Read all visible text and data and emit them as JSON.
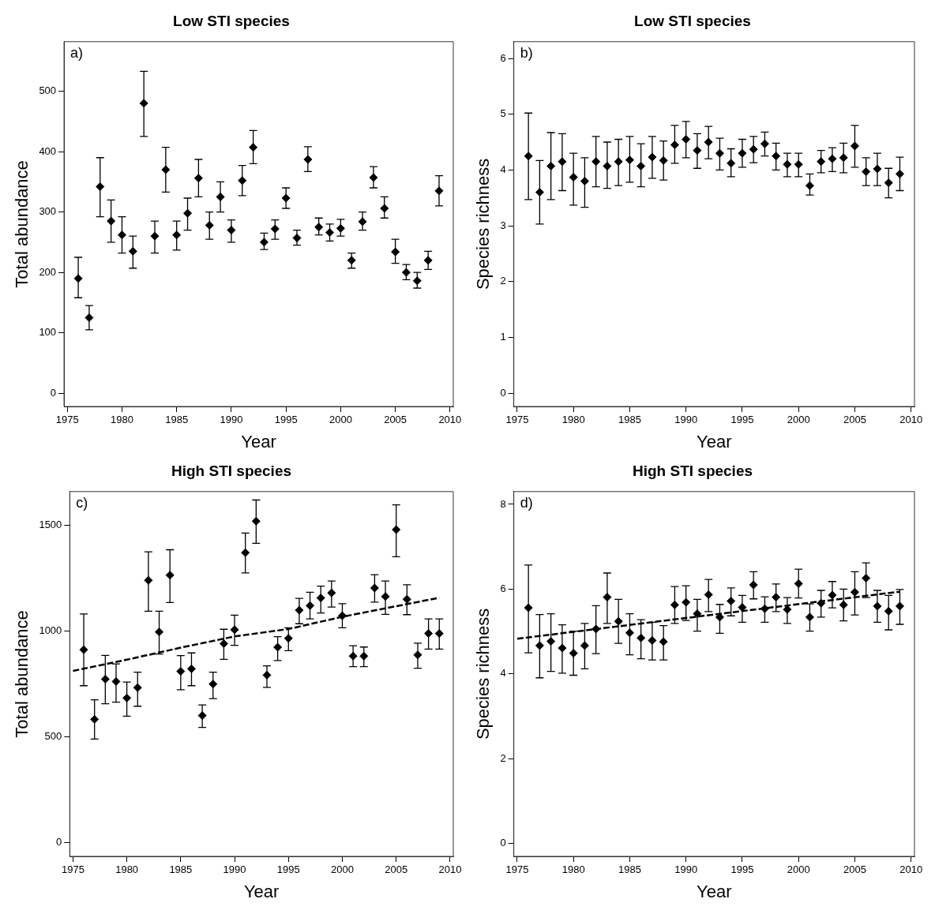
{
  "chart_data": [
    {
      "type": "scatter",
      "title": "Low STI species",
      "xlabel": "Year",
      "ylabel": "Total abundance",
      "annotations": [
        "a)"
      ],
      "marker": "diamond",
      "x": [
        1976,
        1977,
        1978,
        1979,
        1980,
        1981,
        1982,
        1983,
        1984,
        1985,
        1986,
        1987,
        1988,
        1989,
        1990,
        1991,
        1992,
        1993,
        1994,
        1995,
        1996,
        1997,
        1998,
        1999,
        2000,
        2001,
        2002,
        2003,
        2004,
        2005,
        2006,
        2007,
        2008,
        2009
      ],
      "xlim": [
        1974.7,
        2010.3
      ],
      "xticks": [
        1975,
        1980,
        1985,
        1990,
        1995,
        2000,
        2005,
        2010
      ],
      "ylim": [
        -22,
        582
      ],
      "yticks": [
        0,
        100,
        200,
        300,
        400,
        500
      ],
      "series": [
        {
          "color": "#000000",
          "values": [
            190,
            125,
            342,
            285,
            262,
            235,
            480,
            260,
            370,
            262,
            298,
            356,
            278,
            325,
            270,
            352,
            407,
            250,
            272,
            323,
            257,
            387,
            275,
            266,
            273,
            220,
            284,
            357,
            306,
            234,
            200,
            186,
            220,
            335
          ],
          "errors": [
            [
              158,
              225
            ],
            [
              105,
              145
            ],
            [
              292,
              390
            ],
            [
              250,
              320
            ],
            [
              232,
              292
            ],
            [
              207,
              260
            ],
            [
              425,
              533
            ],
            [
              232,
              285
            ],
            [
              333,
              407
            ],
            [
              237,
              285
            ],
            [
              270,
              323
            ],
            [
              325,
              387
            ],
            [
              255,
              300
            ],
            [
              300,
              350
            ],
            [
              250,
              287
            ],
            [
              327,
              377
            ],
            [
              380,
              435
            ],
            [
              238,
              265
            ],
            [
              255,
              287
            ],
            [
              306,
              340
            ],
            [
              245,
              270
            ],
            [
              367,
              408
            ],
            [
              262,
              290
            ],
            [
              252,
              280
            ],
            [
              260,
              288
            ],
            [
              207,
              232
            ],
            [
              270,
              300
            ],
            [
              340,
              375
            ],
            [
              290,
              325
            ],
            [
              215,
              255
            ],
            [
              188,
              213
            ],
            [
              174,
              200
            ],
            [
              205,
              235
            ],
            [
              310,
              360
            ]
          ]
        }
      ]
    },
    {
      "type": "scatter",
      "title": "Low STI species",
      "xlabel": "Year",
      "ylabel": "Species richness",
      "annotations": [
        "b)"
      ],
      "marker": "diamond",
      "x": [
        1976,
        1977,
        1978,
        1979,
        1980,
        1981,
        1982,
        1983,
        1984,
        1985,
        1986,
        1987,
        1988,
        1989,
        1990,
        1991,
        1992,
        1993,
        1994,
        1995,
        1996,
        1997,
        1998,
        1999,
        2000,
        2001,
        2002,
        2003,
        2004,
        2005,
        2006,
        2007,
        2008,
        2009
      ],
      "xlim": [
        1974.7,
        2010.3
      ],
      "xticks": [
        1975,
        1980,
        1985,
        1990,
        1995,
        2000,
        2005,
        2010
      ],
      "ylim": [
        -0.24,
        6.3
      ],
      "yticks": [
        0,
        1,
        2,
        3,
        4,
        5,
        6
      ],
      "series": [
        {
          "color": "#000000",
          "values": [
            4.25,
            3.6,
            4.07,
            4.15,
            3.87,
            3.8,
            4.15,
            4.07,
            4.15,
            4.18,
            4.07,
            4.23,
            4.17,
            4.45,
            4.55,
            4.35,
            4.5,
            4.3,
            4.12,
            4.3,
            4.37,
            4.47,
            4.25,
            4.1,
            4.1,
            3.72,
            4.15,
            4.2,
            4.22,
            4.43,
            3.97,
            4.02,
            3.77,
            3.93
          ],
          "errors": [
            [
              3.47,
              5.02
            ],
            [
              3.03,
              4.17
            ],
            [
              3.47,
              4.67
            ],
            [
              3.63,
              4.65
            ],
            [
              3.37,
              4.3
            ],
            [
              3.33,
              4.22
            ],
            [
              3.7,
              4.6
            ],
            [
              3.67,
              4.5
            ],
            [
              3.72,
              4.55
            ],
            [
              3.78,
              4.6
            ],
            [
              3.7,
              4.47
            ],
            [
              3.85,
              4.6
            ],
            [
              3.82,
              4.52
            ],
            [
              4.12,
              4.8
            ],
            [
              4.22,
              4.87
            ],
            [
              4.03,
              4.65
            ],
            [
              4.2,
              4.78
            ],
            [
              4,
              4.57
            ],
            [
              3.88,
              4.38
            ],
            [
              4.05,
              4.55
            ],
            [
              4.13,
              4.6
            ],
            [
              4.25,
              4.68
            ],
            [
              4,
              4.48
            ],
            [
              3.88,
              4.3
            ],
            [
              3.88,
              4.3
            ],
            [
              3.55,
              3.93
            ],
            [
              3.95,
              4.35
            ],
            [
              3.97,
              4.4
            ],
            [
              3.95,
              4.48
            ],
            [
              4.05,
              4.8
            ],
            [
              3.72,
              4.22
            ],
            [
              3.72,
              4.3
            ],
            [
              3.5,
              4.03
            ],
            [
              3.63,
              4.23
            ]
          ]
        }
      ]
    },
    {
      "type": "scatter",
      "title": "High STI species",
      "xlabel": "Year",
      "ylabel": "Total abundance",
      "annotations": [
        "c)"
      ],
      "marker": "diamond",
      "x": [
        1976,
        1977,
        1978,
        1979,
        1980,
        1981,
        1982,
        1983,
        1984,
        1985,
        1986,
        1987,
        1988,
        1989,
        1990,
        1991,
        1992,
        1993,
        1994,
        1995,
        1996,
        1997,
        1998,
        1999,
        2000,
        2001,
        2002,
        2003,
        2004,
        2005,
        2006,
        2007,
        2008,
        2009
      ],
      "xlim": [
        1974.7,
        2010.3
      ],
      "xticks": [
        1975,
        1980,
        1985,
        1990,
        1995,
        2000,
        2005,
        2010
      ],
      "ylim": [
        -65,
        1660
      ],
      "yticks": [
        0,
        500,
        1000,
        1500
      ],
      "series": [
        {
          "color": "#000000",
          "values": [
            912,
            583,
            773,
            762,
            684,
            733,
            1240,
            996,
            1265,
            810,
            822,
            601,
            750,
            941,
            1007,
            1371,
            1520,
            792,
            924,
            966,
            1099,
            1121,
            1157,
            1181,
            1073,
            882,
            882,
            1204,
            1164,
            1480,
            1151,
            888,
            989,
            989
          ],
          "errors": [
            [
              742,
              1081
            ],
            [
              490,
              675
            ],
            [
              657,
              885
            ],
            [
              664,
              845
            ],
            [
              598,
              759
            ],
            [
              645,
              806
            ],
            [
              1094,
              1375
            ],
            [
              892,
              1094
            ],
            [
              1135,
              1385
            ],
            [
              723,
              884
            ],
            [
              742,
              897
            ],
            [
              545,
              651
            ],
            [
              681,
              806
            ],
            [
              867,
              1009
            ],
            [
              933,
              1076
            ],
            [
              1275,
              1464
            ],
            [
              1415,
              1620
            ],
            [
              734,
              836
            ],
            [
              861,
              974
            ],
            [
              908,
              1016
            ],
            [
              1035,
              1155
            ],
            [
              1058,
              1184
            ],
            [
              1086,
              1213
            ],
            [
              1114,
              1237
            ],
            [
              1016,
              1130
            ],
            [
              832,
              931
            ],
            [
              832,
              925
            ],
            [
              1137,
              1267
            ],
            [
              1079,
              1237
            ],
            [
              1352,
              1597
            ],
            [
              1078,
              1219
            ],
            [
              825,
              943
            ],
            [
              915,
              1058
            ],
            [
              915,
              1058
            ]
          ]
        },
        {
          "type": "line",
          "color": "#000000",
          "line_style": "dashed",
          "marker": "none",
          "x": [
            1975,
            1980,
            1985,
            1990,
            1995,
            2000,
            2005,
            2009
          ],
          "values": [
            812,
            865,
            922,
            975,
            1010,
            1068,
            1118,
            1158
          ]
        }
      ]
    },
    {
      "type": "scatter",
      "title": "High STI species",
      "xlabel": "Year",
      "ylabel": "Species richness",
      "annotations": [
        "d)"
      ],
      "marker": "diamond",
      "x": [
        1976,
        1977,
        1978,
        1979,
        1980,
        1981,
        1982,
        1983,
        1984,
        1985,
        1986,
        1987,
        1988,
        1989,
        1990,
        1991,
        1992,
        1993,
        1994,
        1995,
        1996,
        1997,
        1998,
        1999,
        2000,
        2001,
        2002,
        2003,
        2004,
        2005,
        2006,
        2007,
        2008,
        2009
      ],
      "xlim": [
        1974.7,
        2010.3
      ],
      "xticks": [
        1975,
        1980,
        1985,
        1990,
        1995,
        2000,
        2005,
        2010
      ],
      "ylim": [
        -0.3,
        8.3
      ],
      "yticks": [
        0,
        2,
        4,
        6,
        8
      ],
      "series": [
        {
          "color": "#000000",
          "values": [
            5.56,
            4.67,
            4.77,
            4.61,
            4.49,
            4.67,
            5.06,
            5.81,
            5.24,
            4.97,
            4.85,
            4.79,
            4.76,
            5.63,
            5.69,
            5.42,
            5.87,
            5.34,
            5.72,
            5.57,
            6.1,
            5.54,
            5.81,
            5.52,
            6.13,
            5.34,
            5.67,
            5.86,
            5.63,
            5.93,
            6.26,
            5.6,
            5.48,
            5.6
          ],
          "errors": [
            [
              4.5,
              6.57
            ],
            [
              3.91,
              5.4
            ],
            [
              4.06,
              5.42
            ],
            [
              4.02,
              5.16
            ],
            [
              3.97,
              5.01
            ],
            [
              4.12,
              5.19
            ],
            [
              4.48,
              5.61
            ],
            [
              5.19,
              6.38
            ],
            [
              4.72,
              5.76
            ],
            [
              4.45,
              5.42
            ],
            [
              4.36,
              5.28
            ],
            [
              4.33,
              5.22
            ],
            [
              4.33,
              5.14
            ],
            [
              5.19,
              6.06
            ],
            [
              5.26,
              6.08
            ],
            [
              5.01,
              5.76
            ],
            [
              5.47,
              6.23
            ],
            [
              4.96,
              5.64
            ],
            [
              5.37,
              6.03
            ],
            [
              5.22,
              5.85
            ],
            [
              5.77,
              6.41
            ],
            [
              5.22,
              5.82
            ],
            [
              5.47,
              6.12
            ],
            [
              5.19,
              5.8
            ],
            [
              5.79,
              6.47
            ],
            [
              5.01,
              5.65
            ],
            [
              5.34,
              5.97
            ],
            [
              5.56,
              6.18
            ],
            [
              5.25,
              6.0
            ],
            [
              5.39,
              6.41
            ],
            [
              5.8,
              6.62
            ],
            [
              5.22,
              5.97
            ],
            [
              5.04,
              5.85
            ],
            [
              5.17,
              5.99
            ]
          ]
        },
        {
          "type": "line",
          "color": "#000000",
          "line_style": "dashed",
          "marker": "none",
          "x": [
            1975,
            2009
          ],
          "values": [
            4.83,
            5.94
          ]
        }
      ]
    }
  ]
}
